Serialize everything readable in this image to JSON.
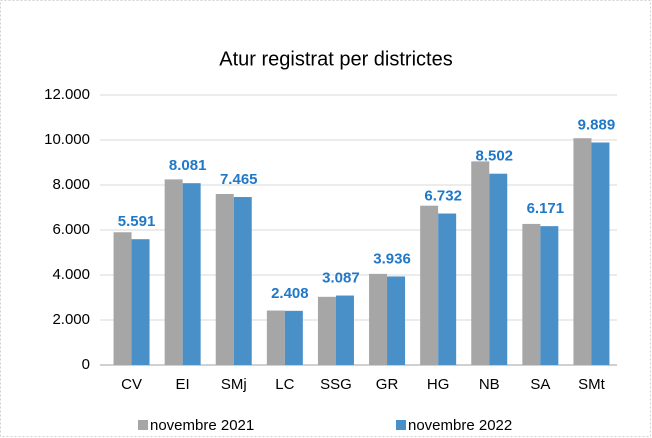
{
  "chart_data": {
    "type": "bar",
    "title": "Atur registrat per districtes",
    "categories": [
      "CV",
      "EI",
      "SMj",
      "LC",
      "SSG",
      "GR",
      "HG",
      "NB",
      "SA",
      "SMt"
    ],
    "series": [
      {
        "name": "novembre 2021",
        "color": "#a6a6a6",
        "values": [
          5900,
          8250,
          7600,
          2420,
          3030,
          4050,
          7080,
          9050,
          6270,
          10080
        ]
      },
      {
        "name": "novembre 2022",
        "color": "#4a90c8",
        "values": [
          5591,
          8081,
          7465,
          2408,
          3087,
          3936,
          6732,
          8502,
          6171,
          9889
        ],
        "value_labels": [
          "5.591",
          "8.081",
          "7.465",
          "2.408",
          "3.087",
          "3.936",
          "6.732",
          "8.502",
          "6.171",
          "9.889"
        ]
      }
    ],
    "ylim": [
      0,
      12000
    ],
    "yticks": [
      0,
      {
        "value": 2000,
        "label": "2.000"
      },
      {
        "value": 4000,
        "label": "4.000"
      },
      {
        "value": 6000,
        "label": "6.000"
      },
      {
        "value": 8000,
        "label": "8.000"
      },
      {
        "value": 10000,
        "label": "10.000"
      },
      {
        "value": 12000,
        "label": "12.000"
      }
    ],
    "grid": true,
    "legend": "bottom"
  }
}
